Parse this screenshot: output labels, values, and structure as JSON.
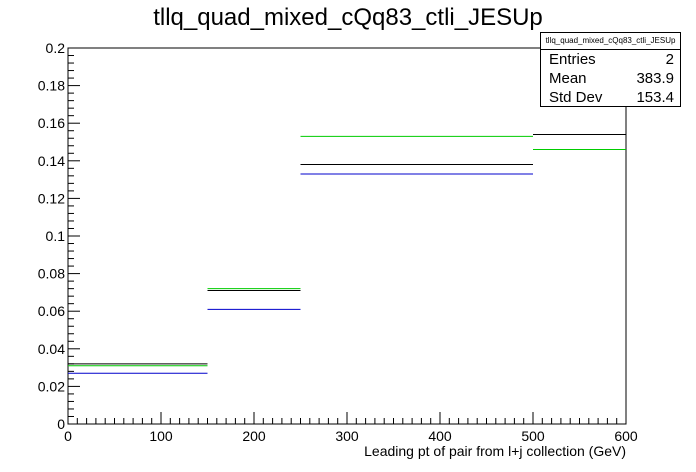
{
  "title": "tllq_quad_mixed_cQq83_ctli_JESUp",
  "stats_box": {
    "name": "tllq_quad_mixed_cQq83_ctli_JESUp",
    "rows": [
      {
        "label": "Entries",
        "value": "2"
      },
      {
        "label": "Mean",
        "value": "383.9"
      },
      {
        "label": "Std Dev",
        "value": "153.4"
      }
    ]
  },
  "chart_data": {
    "type": "histogram",
    "title": "tllq_quad_mixed_cQq83_ctli_JESUp",
    "xlabel": "Leading pt of pair from l+j collection (GeV)",
    "ylabel": "",
    "xlim": [
      0,
      600
    ],
    "ylim": [
      0,
      0.2
    ],
    "x_ticks": [
      "0",
      "100",
      "200",
      "300",
      "400",
      "500",
      "600"
    ],
    "y_ticks": [
      "0",
      "0.02",
      "0.04",
      "0.06",
      "0.08",
      "0.1",
      "0.12",
      "0.14",
      "0.16",
      "0.18",
      "0.2"
    ],
    "bin_edges": [
      0,
      150,
      250,
      500,
      600
    ],
    "grid": false,
    "series": [
      {
        "color": "#000000",
        "values": [
          0.032,
          0.071,
          0.138,
          0.154
        ]
      },
      {
        "color": "#00cc00",
        "values": [
          0.031,
          0.072,
          0.153,
          0.146
        ]
      },
      {
        "color": "#0000cc",
        "values": [
          0.027,
          0.061,
          0.133,
          null
        ]
      }
    ]
  }
}
